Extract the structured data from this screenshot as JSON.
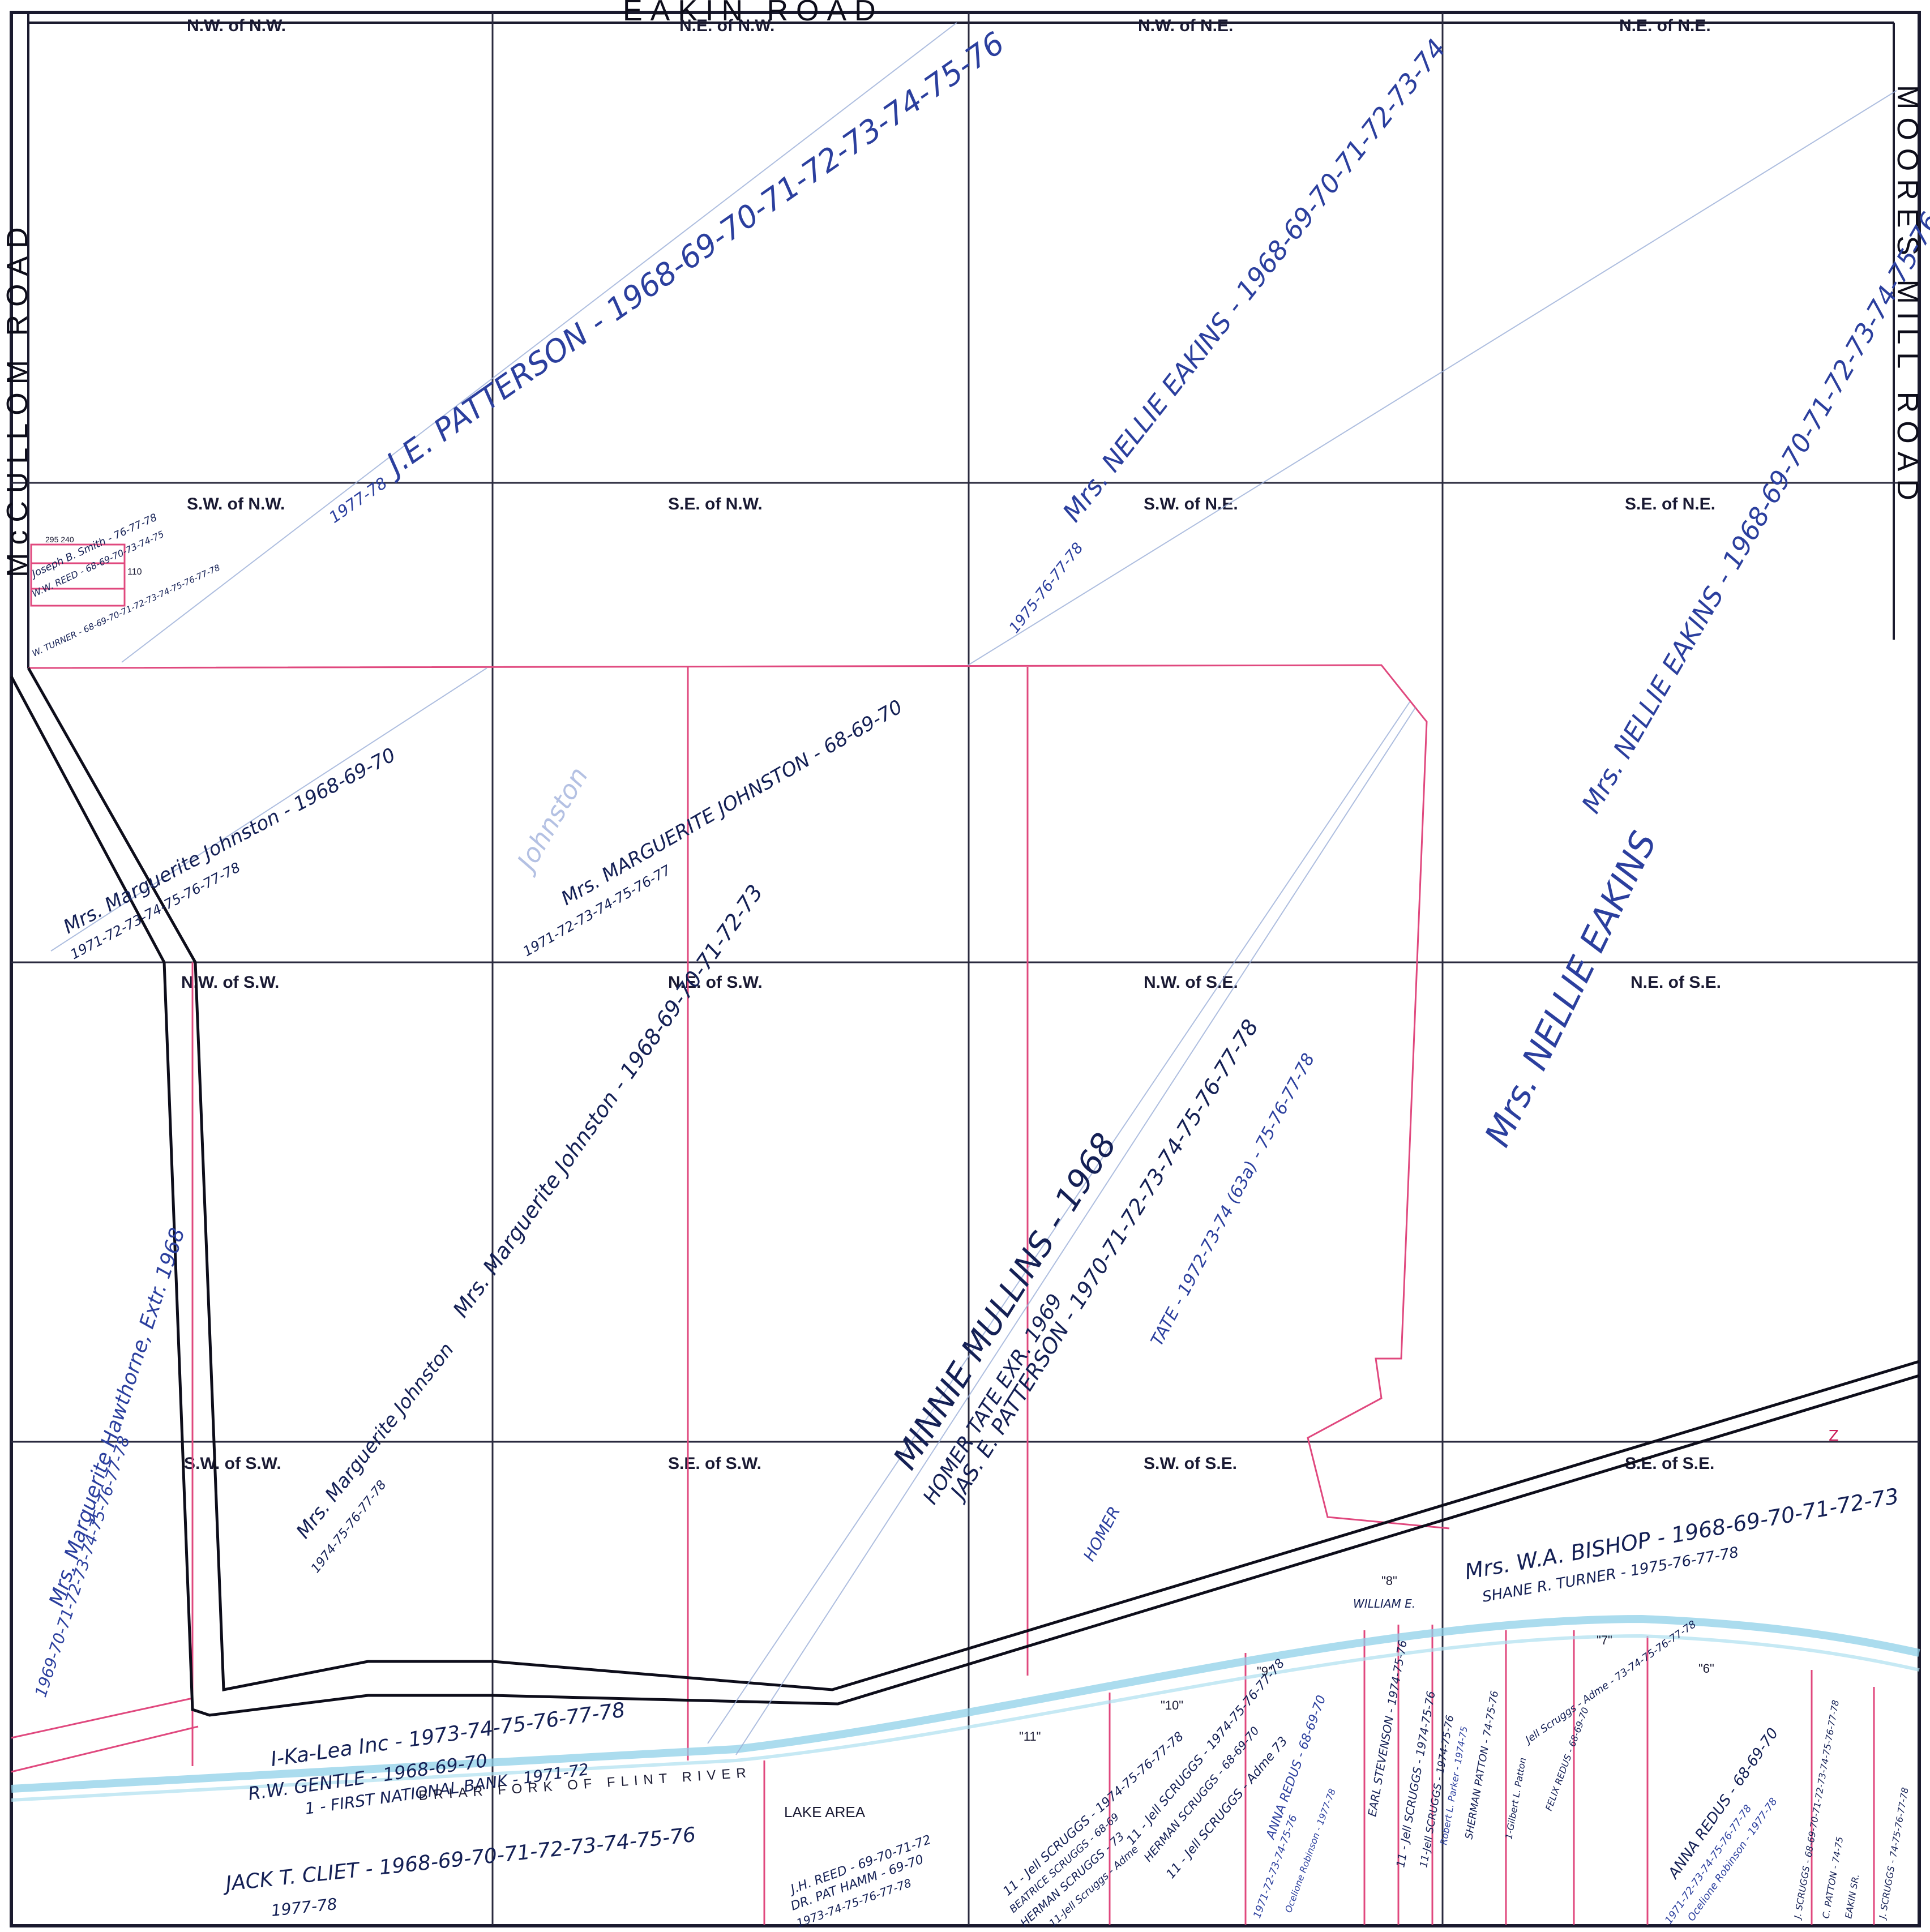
{
  "roads": {
    "top": "EAKIN ROAD",
    "left": "McCULLOM ROAD",
    "right": "MOORES MILL ROAD"
  },
  "sections": [
    "N.W. of N.W.",
    "N.E. of N.W.",
    "N.W. of N.E.",
    "N.E. of N.E.",
    "S.W. of N.W.",
    "S.E. of N.W.",
    "S.W. of N.E.",
    "S.E. of N.E.",
    "N.W. of S.W.",
    "N.E. of S.W.",
    "N.W. of S.E.",
    "N.E. of S.E.",
    "S.W. of S.W.",
    "S.E. of S.W.",
    "S.W. of S.E.",
    "S.E. of S.E."
  ],
  "owners": {
    "patterson": "J.E. PATTERSON - 1968-69-70-71-72-73-74-75-76",
    "patterson_years": "1977-78",
    "eakins_top": "Mrs. NELLIE EAKINS - 1968-69-70-71-72-73-74",
    "eakins_top_years": "1975-76-77-78",
    "eakins_right": "Mrs. NELLIE EAKINS - 1968-69-70-71-72-73-74-75-76-77-78",
    "eakins_lower": "Mrs. NELLIE EAKINS",
    "johnston_left": "Mrs. Marguerite Johnston - 1968-69-70",
    "johnston_left_years": "1971-72-73-74-75-76-77-78",
    "johnston_mid": "Mrs. MARGUERITE JOHNSTON - 68-69-70",
    "johnston_mid_years": "1971-72-73-74-75-76-77",
    "johnston_faint": "Johnston",
    "johnston_lower": "Mrs. Marguerite Johnston - 1968-69-70-71-72-73",
    "johnston_lower2": "Mrs. Marguerite Johnston",
    "johnston_lower2_years": "1974-75-76-77-78",
    "hawthorne": "Mrs. Marguerite Hawthorne, Extr. 1968",
    "hawthorne_years": "1969-70-71-72-73-74-75-76-77-78",
    "mullins": "MINNIE MULLINS - 1968",
    "homer_tate": "HOMER TATE EXR. 1969",
    "jas_patterson": "JAS. E. PATTERSON - 1970-71-72-73-74-75-76-77-78",
    "tate": "TATE - 1972-73-74 (63a) - 75-76-77-78",
    "homer": "HOMER",
    "bishop": "Mrs. W.A. BISHOP - 1968-69-70-71-72-73",
    "turner_shane": "SHANE R. TURNER - 1975-76-77-78",
    "smith": "Joseph B. Smith - 76-77-78",
    "reed_small": "W.W. REED - 68-69-70-73-74-75",
    "turner_small": "W. TURNER - 68-69-70-71-72-73-74-75-76-77-78",
    "ikalea": "I-Ka-Lea Inc - 1973-74-75-76-77-78",
    "gentle": "R.W. GENTLE - 1968-69-70",
    "first_national": "1 - FIRST NATIONAL BANK - 1971-72",
    "cliet": "JACK T. CLIET - 1968-69-70-71-72-73-74-75-76",
    "cliet_years": "1977-78",
    "reed_jh": "J.H. REED - 69-70-71-72",
    "hamm": "DR. PAT HAMM - 69-70",
    "hamm_years": "1973-74-75-76-77-78",
    "scruggs_1": "11 - Jell SCRUGGS - 1974-75-76-77-78",
    "beatrice": "BEATRICE SCRUGGS - 68-69",
    "herman": "HERMAN SCRUGGS - 73",
    "scruggs_adm": "11-Jell Scruggs - Adme",
    "scruggs_2": "11 - Jell SCRUGGS - 1974-75-76-77-78",
    "herman2": "HERMAN SCRUGGS - 68-69-70",
    "scruggs_adm2": "11 - Jell SCRUGGS - Adme 73",
    "redus": "ANNA REDUS - 68-69-70",
    "redus_years": "1971-72-73-74-75-76",
    "robinson": "Ocelione Robinson - 1977-78",
    "stevenson": "EARL STEVENSON - 1974-75-76",
    "scruggs_3": "11 - Jell SCRUGGS - 1974-75-76",
    "scruggs_4": "11-Jell SCRUGGS - 1974-75-76",
    "parker": "Robert L. Parker - 1974-75",
    "patton": "SHERMAN PATTON - 74-75-76",
    "william": "WILLIAM E.",
    "gilbert": "1-Gilbert L. Patton",
    "redus_2": "FELIX REDUS - 68-69-70",
    "scruggs_adm3": "Jell Scruggs - Adme - 73-74-75-76-77-78",
    "anna_redus": "ANNA REDUS - 68-69-70",
    "anna_redus_years": "1971-72-73-74-75-76-77-78",
    "robinson2": "Ocelione Robinson - 1977-78",
    "scruggs_5": "J. SCRUGGS - 68-69-70-71-72-73-74-75-76-77-78",
    "patton_c": "C. PATTON - 74-75",
    "eakin_sm": "EAKIN SR.",
    "scruggs_6": "J. SCRUGGS - 74-75-76-77-78"
  },
  "features": {
    "river": "BRIAR FORK OF FLINT RIVER",
    "lake": "LAKE AREA",
    "lot_10": "\"10\"",
    "lot_9": "\"9\"",
    "lot_8": "\"8\"",
    "lot_7": "\"7\"",
    "lot_6": "\"6\"",
    "lot_11": "\"11\"",
    "corner_z": "Z",
    "note_110": "110",
    "note_295": "295 240"
  }
}
